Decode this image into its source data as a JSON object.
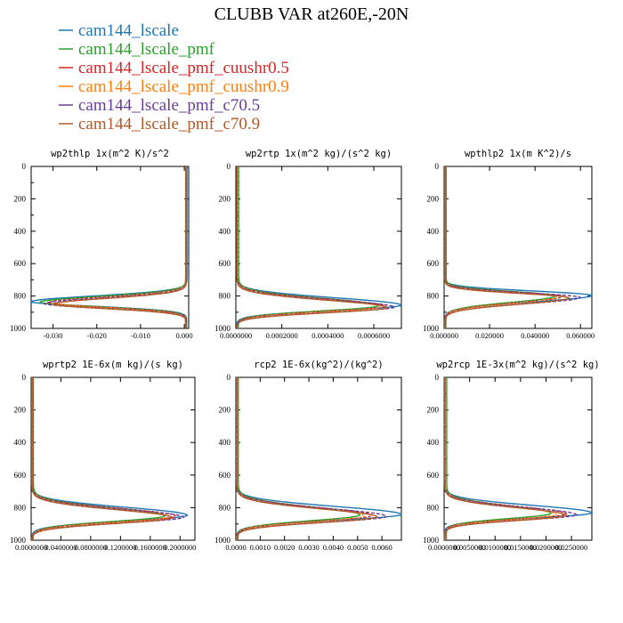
{
  "title": "CLUBB VAR at260E,-20N",
  "legend": [
    {
      "name": "cam144_lscale",
      "color": "#1f77b4"
    },
    {
      "name": "cam144_lscale_pmf",
      "color": "#2ca02c"
    },
    {
      "name": "cam144_lscale_pmf_cuushr0.5",
      "color": "#d62728"
    },
    {
      "name": "cam144_lscale_pmf_cuushr0.9",
      "color": "#ff7f0e"
    },
    {
      "name": "cam144_lscale_pmf_c70.5",
      "color": "#6a3d9a"
    },
    {
      "name": "cam144_lscale_pmf_c70.9",
      "color": "#b25a2a"
    }
  ],
  "chart_data": [
    {
      "type": "line",
      "title": "wp2thlp  1x(m^2 K)/s^2",
      "xlim": [
        -0.035,
        0.001
      ],
      "xticks": [
        -0.03,
        -0.02,
        -0.01,
        0.0
      ],
      "xtick_labels": [
        "-0.030",
        "-0.020",
        "-0.010",
        "0.000"
      ],
      "ylim": [
        1000,
        0
      ],
      "yticks": [
        0,
        200,
        400,
        600,
        800,
        1000
      ],
      "ytick_labels": [
        "0",
        "200",
        "400",
        "600",
        "800",
        "1000"
      ],
      "profile": {
        "base": 0.0,
        "peak_level": 843,
        "width_up": 50,
        "width_down": 40
      },
      "series_peaks": [
        -0.035,
        -0.033,
        -0.031,
        -0.029,
        -0.032,
        -0.03
      ],
      "series_base": [
        0.0006,
        0.0003,
        0.0005,
        0.0004,
        0.0005,
        0.0004
      ]
    },
    {
      "type": "line",
      "title": "wp2rtp  1x(m^2 kg)/(s^2 kg)",
      "xlim": [
        0.0,
        0.00072
      ],
      "xticks": [
        0.0,
        0.0002,
        0.0004,
        0.0006
      ],
      "xtick_labels": [
        "0.0000000",
        "0.0002000",
        "0.0004000",
        "0.0006000"
      ],
      "ylim": [
        1000,
        0
      ],
      "yticks": [
        0,
        200,
        400,
        600,
        800,
        1000
      ],
      "ytick_labels": [
        "0",
        "200",
        "400",
        "600",
        "800",
        "1000"
      ],
      "profile": {
        "base": 0.0,
        "peak_level": 865,
        "width_up": 65,
        "width_down": 45
      },
      "series_peaks": [
        0.00072,
        0.00062,
        0.00065,
        0.00063,
        0.00069,
        0.00066
      ],
      "series_base": [
        4e-06,
        1.2e-05,
        6e-06,
        5e-06,
        4e-06,
        5e-06
      ]
    },
    {
      "type": "line",
      "title": "wpthlp2  1x(m K^2)/s",
      "xlim": [
        0.0,
        0.065
      ],
      "xticks": [
        0.0,
        0.02,
        0.04,
        0.06
      ],
      "xtick_labels": [
        "0.000000",
        "0.020000",
        "0.040000",
        "0.060000"
      ],
      "ylim": [
        1000,
        0
      ],
      "yticks": [
        0,
        200,
        400,
        600,
        800,
        1000
      ],
      "ytick_labels": [
        "0",
        "200",
        "400",
        "600",
        "800",
        "1000"
      ],
      "profile": {
        "base": 0.0,
        "peak_level": 805,
        "width_up": 40,
        "width_down": 55
      },
      "series_peaks": [
        0.065,
        0.049,
        0.052,
        0.05,
        0.06,
        0.055
      ],
      "series_base": [
        0.0003,
        0.0009,
        0.0004,
        0.0003,
        0.0003,
        0.0004
      ]
    },
    {
      "type": "line",
      "title": "wprtp2  1E-6x(m kg)/(s kg)",
      "xlim": [
        0.0,
        0.22
      ],
      "xticks": [
        0.0,
        0.04,
        0.08,
        0.12,
        0.16,
        0.2
      ],
      "xtick_labels": [
        "0.0000000",
        "0.0400000",
        "0.0800000",
        "0.1200000",
        "0.1600000",
        "0.2000000"
      ],
      "ylim": [
        1000,
        0
      ],
      "yticks": [
        0,
        200,
        400,
        600,
        800,
        1000
      ],
      "ytick_labels": [
        "0",
        "200",
        "400",
        "600",
        "800",
        "1000"
      ],
      "profile": {
        "base": 0.0,
        "peak_level": 855,
        "width_up": 70,
        "width_down": 50
      },
      "series_peaks": [
        0.21,
        0.18,
        0.195,
        0.185,
        0.205,
        0.19
      ],
      "series_base": [
        0.001,
        0.003,
        0.0015,
        0.0012,
        0.001,
        0.0013
      ]
    },
    {
      "type": "line",
      "title": "rcp2  1E-6x(kg^2)/(kg^2)",
      "xlim": [
        0.0,
        0.0068
      ],
      "xticks": [
        0.0,
        0.001,
        0.002,
        0.003,
        0.004,
        0.005,
        0.006
      ],
      "xtick_labels": [
        "0.0000",
        "0.0010",
        "0.0020",
        "0.0030",
        "0.0040",
        "0.0050",
        "0.0060"
      ],
      "ylim": [
        1000,
        0
      ],
      "yticks": [
        0,
        200,
        400,
        600,
        800,
        1000
      ],
      "ytick_labels": [
        "0",
        "200",
        "400",
        "600",
        "800",
        "1000"
      ],
      "profile": {
        "base": 0.0,
        "peak_level": 850,
        "width_up": 70,
        "width_down": 50
      },
      "series_peaks": [
        0.0068,
        0.0051,
        0.0056,
        0.0053,
        0.0062,
        0.0058
      ],
      "series_base": [
        3e-05,
        0.0001,
        4e-05,
        3e-05,
        3e-05,
        4e-05
      ]
    },
    {
      "type": "line",
      "title": "wp2rcp  1E-3x(m^2 kg)/(s^2 kg)",
      "xlim": [
        0.0,
        0.029
      ],
      "xticks": [
        0.0,
        0.005,
        0.01,
        0.015,
        0.02,
        0.025
      ],
      "xtick_labels": [
        "0.0000000",
        "0.0050000",
        "0.0100000",
        "0.0150000",
        "0.0200000",
        "0.0250000"
      ],
      "ylim": [
        1000,
        0
      ],
      "yticks": [
        0,
        200,
        400,
        600,
        800,
        1000
      ],
      "ytick_labels": [
        "0",
        "200",
        "400",
        "600",
        "800",
        "1000"
      ],
      "profile": {
        "base": 0.0,
        "peak_level": 840,
        "width_up": 65,
        "width_down": 45
      },
      "series_peaks": [
        0.029,
        0.021,
        0.024,
        0.022,
        0.026,
        0.024
      ],
      "series_base": [
        0.0001,
        0.0005,
        0.0002,
        0.0001,
        0.0001,
        0.0002
      ]
    }
  ]
}
